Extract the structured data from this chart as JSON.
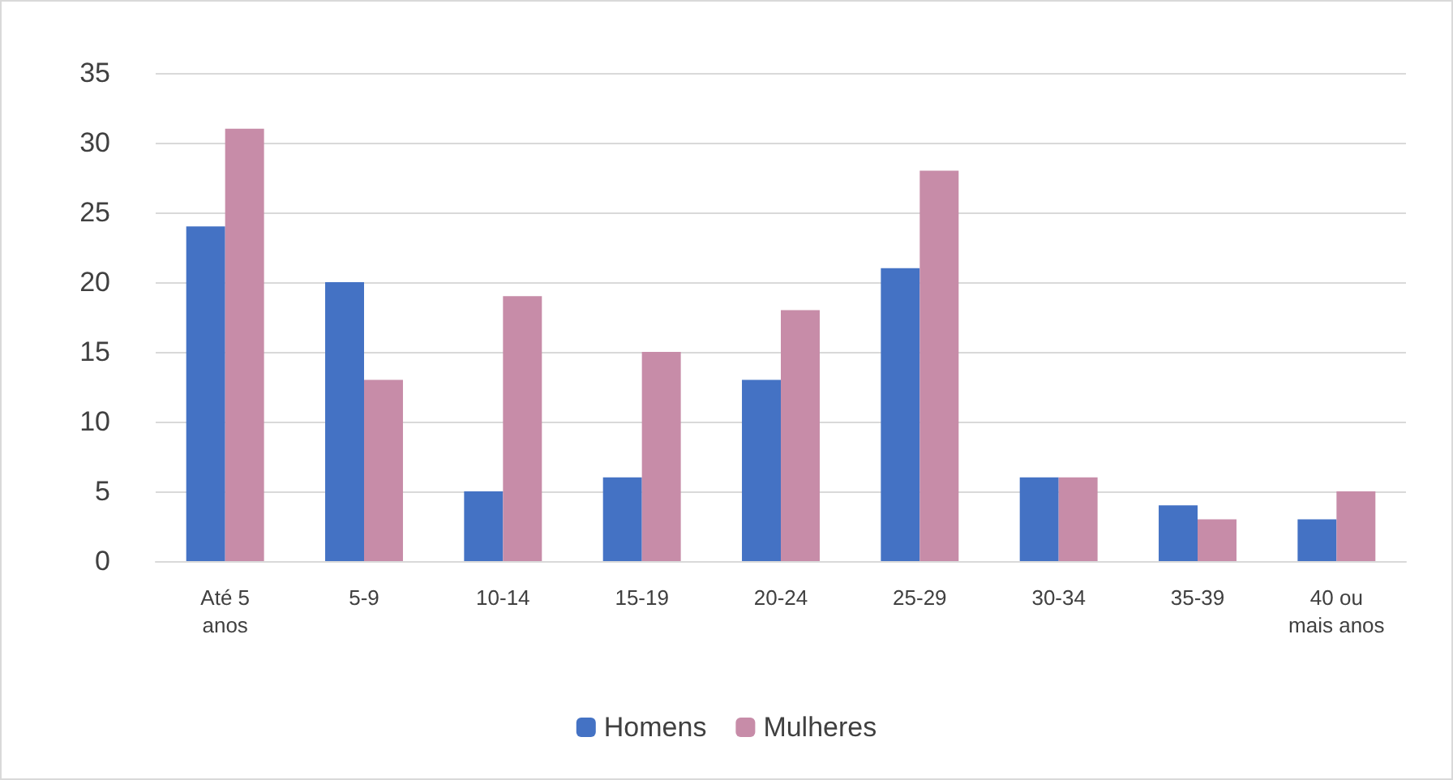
{
  "chart_data": {
    "type": "bar",
    "categories": [
      "Até 5 anos",
      "5-9",
      "10-14",
      "15-19",
      "20-24",
      "25-29",
      "30-34",
      "35-39",
      "40 ou mais anos"
    ],
    "series": [
      {
        "name": "Homens",
        "color": "#4472c4",
        "values": [
          24,
          20,
          5,
          6,
          13,
          21,
          6,
          4,
          3
        ]
      },
      {
        "name": "Mulheres",
        "color": "#c78ca8",
        "values": [
          31,
          13,
          19,
          15,
          18,
          28,
          6,
          3,
          5
        ]
      }
    ],
    "ylim": [
      0,
      35
    ],
    "yticks": [
      0,
      5,
      10,
      15,
      20,
      25,
      30,
      35
    ],
    "grid": "y",
    "legend": "bottom"
  }
}
